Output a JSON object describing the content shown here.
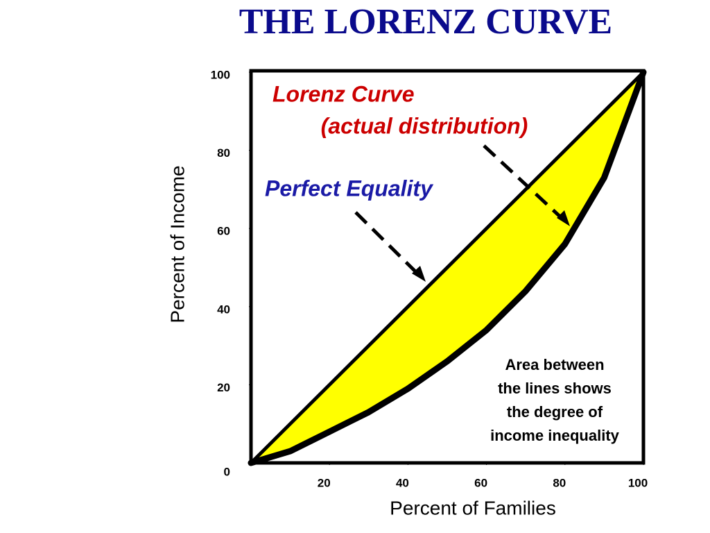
{
  "chart_data": {
    "type": "line",
    "title": "THE LORENZ CURVE",
    "x_label": "Percent of Families",
    "y_label": "Percent of Income",
    "xlim": [
      0,
      100
    ],
    "ylim": [
      0,
      100
    ],
    "xticks": [
      20,
      40,
      60,
      80,
      100
    ],
    "yticks": [
      0,
      20,
      40,
      60,
      80,
      100
    ],
    "area_color": "#ffff00",
    "series": [
      {
        "name": "Perfect Equality",
        "color": "#000000",
        "label_color": "#1a1aa6",
        "x": [
          0,
          100
        ],
        "values": [
          0,
          100
        ]
      },
      {
        "name": "Lorenz Curve",
        "color": "#000000",
        "label_color": "#cc0000",
        "x": [
          0,
          10,
          20,
          30,
          40,
          50,
          60,
          70,
          80,
          90,
          100
        ],
        "values": [
          0,
          3,
          8,
          13,
          19,
          26,
          34,
          44,
          56,
          73,
          100
        ]
      }
    ],
    "annotations": [
      {
        "lines": [
          "(actual distribution)"
        ],
        "color": "#cc0000"
      },
      {
        "lines": [
          "Area between",
          "the lines shows",
          "the degree of",
          "income inequality"
        ],
        "color": "#000000"
      }
    ]
  }
}
